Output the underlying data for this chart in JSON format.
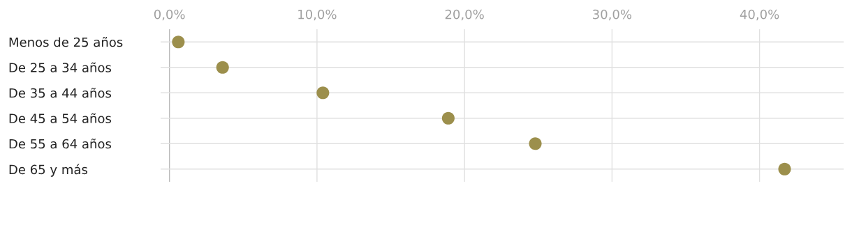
{
  "chart_data": {
    "type": "scatter",
    "orientation": "horizontal",
    "categories": [
      "Menos de 25 años",
      "De 25 a 34 años",
      "De 35 a 44 años",
      "De 45 a 54 años",
      "De 55 a 64 años",
      "De 65 y más"
    ],
    "values": [
      0.6,
      3.6,
      10.4,
      18.9,
      24.8,
      41.7
    ],
    "color": "#9c8f4c",
    "xlim": [
      -0.6,
      45.7
    ],
    "xticks": [
      {
        "value": 0,
        "label": "0,0%"
      },
      {
        "value": 10,
        "label": "10,0%"
      },
      {
        "value": 20,
        "label": "20,0%"
      },
      {
        "value": 30,
        "label": "30,0%"
      },
      {
        "value": 40,
        "label": "40,0%"
      }
    ],
    "grid": true,
    "marker": "circle"
  }
}
